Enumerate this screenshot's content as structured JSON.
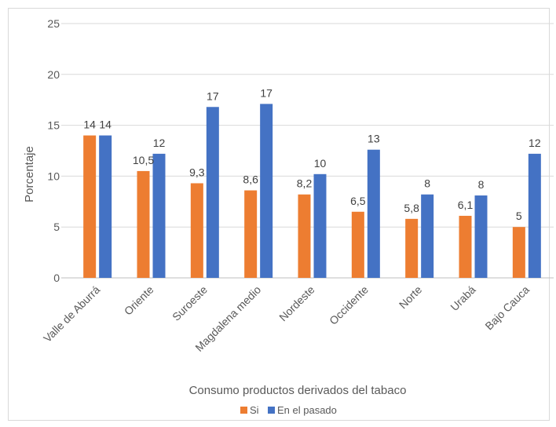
{
  "chart_data": {
    "type": "bar",
    "categories": [
      "Valle de Aburrá",
      "Oriente",
      "Suroeste",
      "Magdalena medio",
      "Nordeste",
      "Occidente",
      "Norte",
      "Urabá",
      "Bajo Cauca"
    ],
    "series": [
      {
        "name": "Si",
        "values": [
          14,
          10.5,
          9.3,
          8.6,
          8.2,
          6.5,
          5.8,
          6.1,
          5
        ],
        "labels": [
          "14",
          "10,5",
          "9,3",
          "8,6",
          "8,2",
          "6,5",
          "5,8",
          "6,1",
          "5"
        ],
        "color": "#ED7D31"
      },
      {
        "name": "En el pasado",
        "values": [
          14,
          12.2,
          16.8,
          17.1,
          10.2,
          12.6,
          8.2,
          8.1,
          12.2
        ],
        "labels": [
          "14",
          "12",
          "17",
          "17",
          "10",
          "13",
          "8",
          "8",
          "12"
        ],
        "color": "#4472C4"
      }
    ],
    "title": "",
    "xlabel": "Consumo productos derivados del tabaco",
    "ylabel": "Porcentaje",
    "ylim": [
      0,
      25
    ],
    "yticks": [
      "0",
      "5",
      "10",
      "15",
      "20",
      "25"
    ],
    "ytick_values": [
      0,
      5,
      10,
      15,
      20,
      25
    ],
    "grid": true,
    "legend_position": "bottom"
  }
}
